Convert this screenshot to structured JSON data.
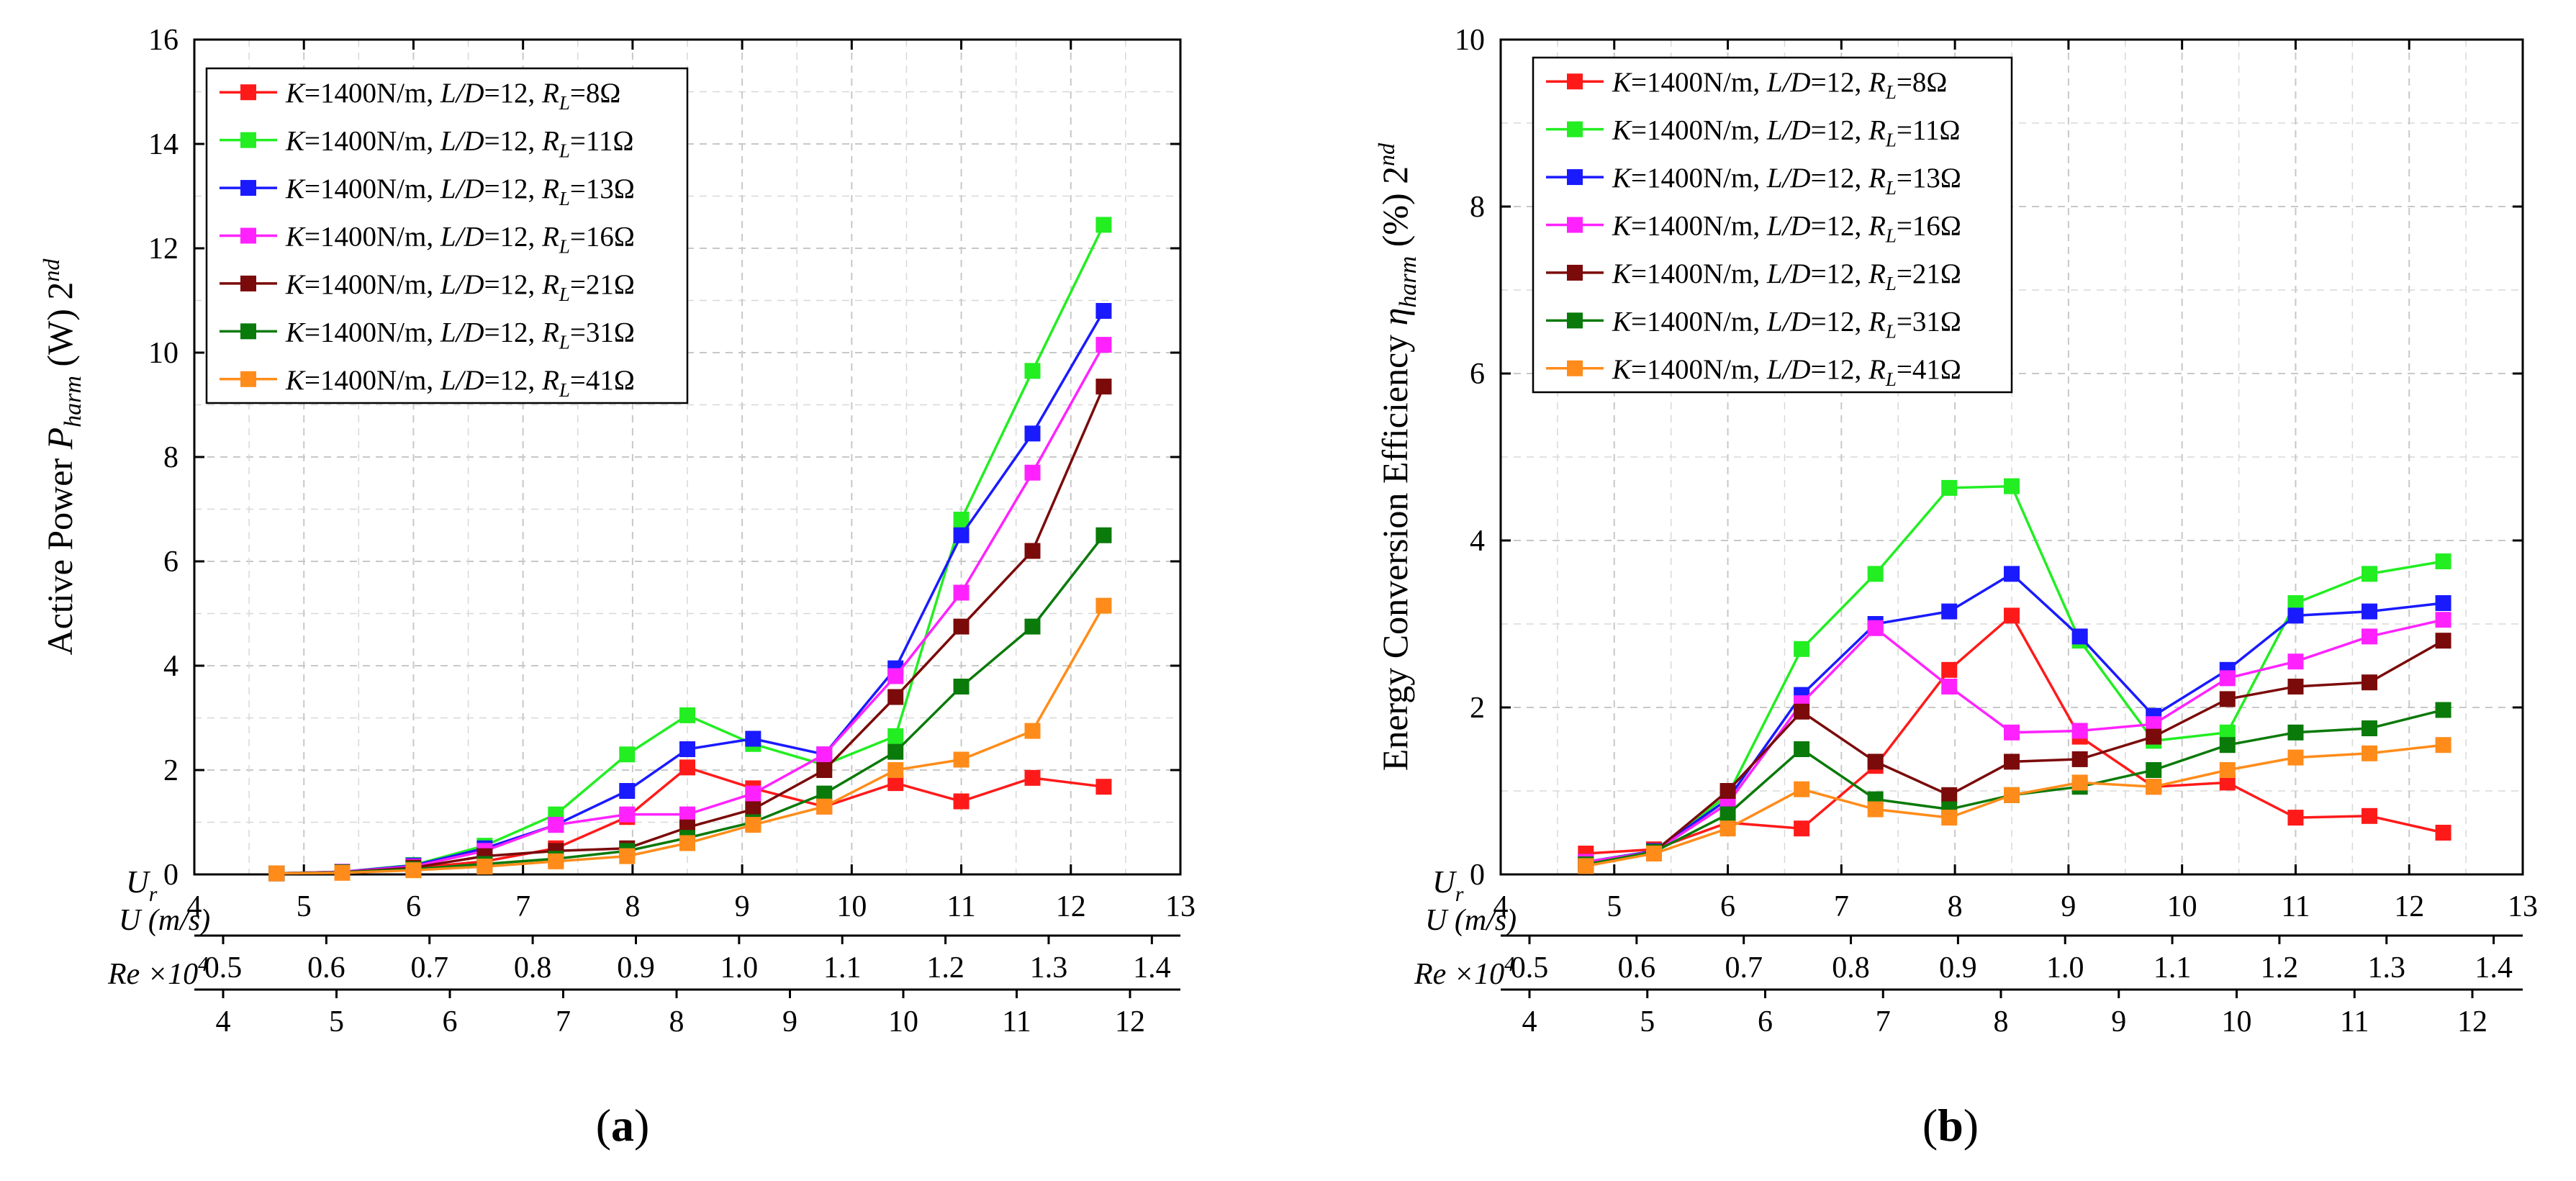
{
  "legend_series": [
    {
      "k": "K",
      "kval": "=1400N/m, ",
      "l": "L",
      "d": "/D",
      "ld": "=12, ",
      "r": "R",
      "rsub": "L",
      "rval": "=8Ω",
      "color": "#ff1a1a"
    },
    {
      "k": "K",
      "kval": "=1400N/m, ",
      "l": "L",
      "d": "/D",
      "ld": "=12, ",
      "r": "R",
      "rsub": "L",
      "rval": "=11Ω",
      "color": "#22ee22"
    },
    {
      "k": "K",
      "kval": "=1400N/m, ",
      "l": "L",
      "d": "/D",
      "ld": "=12, ",
      "r": "R",
      "rsub": "L",
      "rval": "=13Ω",
      "color": "#1a1aff"
    },
    {
      "k": "K",
      "kval": "=1400N/m, ",
      "l": "L",
      "d": "/D",
      "ld": "=12, ",
      "r": "R",
      "rsub": "L",
      "rval": "=16Ω",
      "color": "#ff22ff"
    },
    {
      "k": "K",
      "kval": "=1400N/m, ",
      "l": "L",
      "d": "/D",
      "ld": "=12, ",
      "r": "R",
      "rsub": "L",
      "rval": "=21Ω",
      "color": "#7b0a0a"
    },
    {
      "k": "K",
      "kval": "=1400N/m, ",
      "l": "L",
      "d": "/D",
      "ld": "=12, ",
      "r": "R",
      "rsub": "L",
      "rval": "=31Ω",
      "color": "#0a7a0a"
    },
    {
      "k": "K",
      "kval": "=1400N/m, ",
      "l": "L",
      "d": "/D",
      "ld": "=12, ",
      "r": "R",
      "rsub": "L",
      "rval": "=41Ω",
      "color": "#ff8c1a"
    }
  ],
  "chart_data": [
    {
      "type": "line",
      "panel_label": "a",
      "ylabel": {
        "main": "Active Power ",
        "sym": "P",
        "sub": "harm",
        "unit": " (W) 2",
        "sup": "nd"
      },
      "ylim": [
        0,
        16
      ],
      "yticks": [
        0,
        2,
        4,
        6,
        8,
        10,
        12,
        14,
        16
      ],
      "xlim": [
        4,
        13
      ],
      "xticks": [
        4,
        5,
        6,
        7,
        8,
        9,
        10,
        11,
        12,
        13
      ],
      "axis_labels": {
        "ur": "U",
        "ur_sub": "r",
        "u": "U (m/s)",
        "re": "Re ×10",
        "re_sup": "4"
      },
      "u_ticks": [
        "0.5",
        "0.6",
        "0.7",
        "0.8",
        "0.9",
        "1.0",
        "1.1",
        "1.2",
        "1.3",
        "1.4"
      ],
      "re_ticks": [
        "4",
        "5",
        "6",
        "7",
        "8",
        "9",
        "10",
        "11",
        "12"
      ],
      "x": [
        4.75,
        5.35,
        6.0,
        6.65,
        7.3,
        7.95,
        8.5,
        9.1,
        9.75,
        10.4,
        11.0,
        11.65,
        12.3
      ],
      "series": [
        {
          "name": "K=1400N/m, L/D=12, RL=8Ω",
          "color": "#ff1a1a",
          "values": [
            0.02,
            0.04,
            0.12,
            0.25,
            0.5,
            1.1,
            2.05,
            1.65,
            1.3,
            1.75,
            1.4,
            1.85,
            1.68
          ]
        },
        {
          "name": "K=1400N/m, L/D=12, RL=11Ω",
          "color": "#22ee22",
          "values": [
            0.02,
            0.05,
            0.18,
            0.55,
            1.15,
            2.3,
            3.05,
            2.5,
            2.1,
            2.65,
            6.8,
            9.65,
            12.45
          ]
        },
        {
          "name": "K=1400N/m, L/D=12, RL=13Ω",
          "color": "#1a1aff",
          "values": [
            0.02,
            0.05,
            0.17,
            0.5,
            0.95,
            1.6,
            2.4,
            2.6,
            2.3,
            3.95,
            6.5,
            8.45,
            10.8
          ]
        },
        {
          "name": "K=1400N/m, L/D=12, RL=16Ω",
          "color": "#ff22ff",
          "values": [
            0.02,
            0.05,
            0.15,
            0.45,
            0.95,
            1.15,
            1.15,
            1.55,
            2.3,
            3.8,
            5.4,
            7.7,
            10.15
          ]
        },
        {
          "name": "K=1400N/m, L/D=12, RL=21Ω",
          "color": "#7b0a0a",
          "values": [
            0.02,
            0.04,
            0.13,
            0.35,
            0.45,
            0.5,
            0.9,
            1.25,
            2.0,
            3.4,
            4.75,
            6.2,
            9.35
          ]
        },
        {
          "name": "K=1400N/m, L/D=12, RL=31Ω",
          "color": "#0a7a0a",
          "values": [
            0.02,
            0.04,
            0.1,
            0.2,
            0.3,
            0.45,
            0.7,
            1.0,
            1.55,
            2.35,
            3.6,
            4.75,
            6.5
          ]
        },
        {
          "name": "K=1400N/m, L/D=12, RL=41Ω",
          "color": "#ff8c1a",
          "values": [
            0.02,
            0.03,
            0.08,
            0.15,
            0.25,
            0.35,
            0.6,
            0.95,
            1.3,
            2.0,
            2.2,
            2.75,
            5.15
          ]
        }
      ]
    },
    {
      "type": "line",
      "panel_label": "b",
      "ylabel": {
        "main": "Energy Conversion Efficiency ",
        "sym": "η",
        "sub": "harm",
        "unit": " (%) 2",
        "sup": "nd"
      },
      "ylim": [
        0,
        10
      ],
      "yticks": [
        0,
        2,
        4,
        6,
        8,
        10
      ],
      "xlim": [
        4,
        13
      ],
      "xticks": [
        4,
        5,
        6,
        7,
        8,
        9,
        10,
        11,
        12,
        13
      ],
      "axis_labels": {
        "ur": "U",
        "ur_sub": "r",
        "u": "U (m/s)",
        "re": "Re ×10",
        "re_sup": "4"
      },
      "u_ticks": [
        "0.5",
        "0.6",
        "0.7",
        "0.8",
        "0.9",
        "1.0",
        "1.1",
        "1.2",
        "1.3",
        "1.4"
      ],
      "re_ticks": [
        "4",
        "5",
        "6",
        "7",
        "8",
        "9",
        "10",
        "11",
        "12"
      ],
      "x": [
        4.75,
        5.35,
        6.0,
        6.65,
        7.3,
        7.95,
        8.5,
        9.1,
        9.75,
        10.4,
        11.0,
        11.65,
        12.3
      ],
      "series": [
        {
          "name": "K=1400N/m, L/D=12, RL=8Ω",
          "color": "#ff1a1a",
          "values": [
            0.25,
            0.3,
            0.62,
            0.55,
            1.3,
            2.45,
            3.1,
            1.65,
            1.05,
            1.1,
            0.68,
            0.7,
            0.5
          ]
        },
        {
          "name": "K=1400N/m, L/D=12, RL=11Ω",
          "color": "#22ee22",
          "values": [
            0.15,
            0.28,
            0.95,
            2.7,
            3.6,
            4.63,
            4.65,
            2.8,
            1.6,
            1.7,
            3.25,
            3.6,
            3.75
          ]
        },
        {
          "name": "K=1400N/m, L/D=12, RL=13Ω",
          "color": "#1a1aff",
          "values": [
            0.15,
            0.28,
            0.9,
            2.15,
            3.0,
            3.15,
            3.6,
            2.85,
            1.9,
            2.45,
            3.1,
            3.15,
            3.25
          ]
        },
        {
          "name": "K=1400N/m, L/D=12, RL=16Ω",
          "color": "#ff22ff",
          "values": [
            0.15,
            0.27,
            0.85,
            2.05,
            2.95,
            2.25,
            1.7,
            1.72,
            1.8,
            2.35,
            2.55,
            2.85,
            3.05
          ]
        },
        {
          "name": "K=1400N/m, L/D=12, RL=21Ω",
          "color": "#7b0a0a",
          "values": [
            0.12,
            0.27,
            1.0,
            1.95,
            1.35,
            0.95,
            1.35,
            1.38,
            1.65,
            2.1,
            2.25,
            2.3,
            2.8
          ]
        },
        {
          "name": "K=1400N/m, L/D=12, RL=31Ω",
          "color": "#0a7a0a",
          "values": [
            0.12,
            0.27,
            0.72,
            1.5,
            0.9,
            0.78,
            0.95,
            1.05,
            1.25,
            1.55,
            1.7,
            1.75,
            1.97
          ]
        },
        {
          "name": "K=1400N/m, L/D=12, RL=41Ω",
          "color": "#ff8c1a",
          "values": [
            0.1,
            0.25,
            0.55,
            1.02,
            0.78,
            0.68,
            0.95,
            1.1,
            1.05,
            1.25,
            1.4,
            1.45,
            1.55
          ]
        }
      ]
    }
  ]
}
